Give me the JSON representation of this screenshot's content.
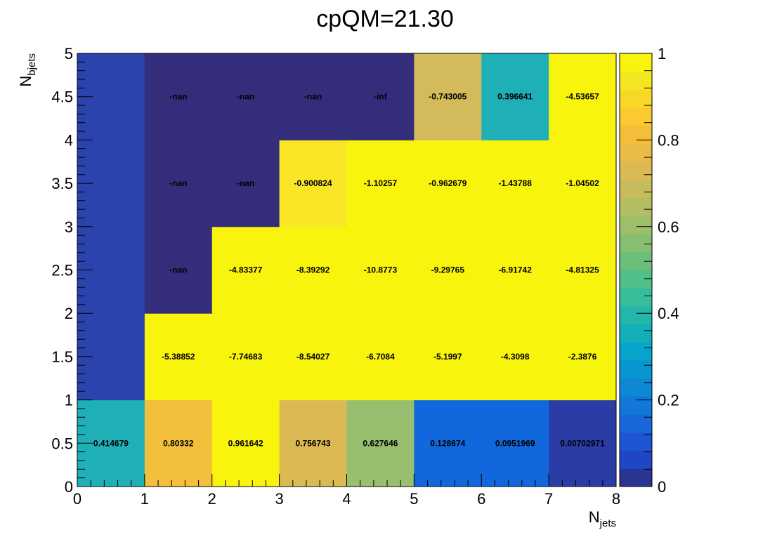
{
  "chart_data": {
    "type": "heatmap",
    "title": "cpQM=21.30",
    "xlabel": {
      "main": "N",
      "sub": "jets"
    },
    "ylabel": {
      "main": "N",
      "sub": "bjets"
    },
    "xlim": [
      0,
      8
    ],
    "ylim": [
      0,
      5
    ],
    "zlim": [
      0,
      1
    ],
    "x_bin_edges": [
      0,
      1,
      2,
      3,
      4,
      5,
      6,
      7,
      8
    ],
    "y_bin_edges": [
      0,
      1,
      2,
      3,
      4,
      5
    ],
    "x_tick_labels": [
      "0",
      "1",
      "2",
      "3",
      "4",
      "5",
      "6",
      "7",
      "8"
    ],
    "y_tick_labels": [
      "0",
      "0.5",
      "1",
      "1.5",
      "2",
      "2.5",
      "3",
      "3.5",
      "4",
      "4.5",
      "5"
    ],
    "colorbar_tick_labels": [
      "0",
      "0.2",
      "0.4",
      "0.6",
      "0.8",
      "1"
    ],
    "palette": [
      "#2a3591",
      "#1f46c4",
      "#1d55d2",
      "#1868dc",
      "#1177d9",
      "#0e87d4",
      "#0796d1",
      "#07a5cb",
      "#12afbb",
      "#24b6ab",
      "#38bc9a",
      "#52bf89",
      "#6bbf7a",
      "#86bf72",
      "#9ebe69",
      "#b3bd62",
      "#c6bc5c",
      "#dbba53",
      "#e9bb47",
      "#f5be39",
      "#fbc930",
      "#f9d728",
      "#f5e622",
      "#f9f40d"
    ],
    "underflow_color": "#332d7c",
    "cells": [
      {
        "x": 0.5,
        "y": 0.5,
        "z": 0.414679,
        "label": "0.414679"
      },
      {
        "x": 1.5,
        "y": 0.5,
        "z": 0.80332,
        "label": "0.80332"
      },
      {
        "x": 2.5,
        "y": 0.5,
        "z": 0.961642,
        "label": "0.961642"
      },
      {
        "x": 3.5,
        "y": 0.5,
        "z": 0.756743,
        "label": "0.756743"
      },
      {
        "x": 4.5,
        "y": 0.5,
        "z": 0.627646,
        "label": "0.627646"
      },
      {
        "x": 5.5,
        "y": 0.5,
        "z": 0.128674,
        "label": "0.128674"
      },
      {
        "x": 6.5,
        "y": 0.5,
        "z": 0.0951969,
        "label": "0.0951969"
      },
      {
        "x": 7.5,
        "y": 0.5,
        "z": 0.00702971,
        "label": "0.00702971"
      },
      {
        "x": 0.5,
        "y": 1.5,
        "z": 0.05,
        "label": ""
      },
      {
        "x": 0.5,
        "y": 2.5,
        "z": 0.05,
        "label": ""
      },
      {
        "x": 0.5,
        "y": 3.5,
        "z": 0.05,
        "label": ""
      },
      {
        "x": 0.5,
        "y": 4.5,
        "z": 0.05,
        "label": ""
      },
      {
        "x": 1.5,
        "y": 1.5,
        "z": -5.38852,
        "label": "-5.38852"
      },
      {
        "x": 2.5,
        "y": 1.5,
        "z": -7.74683,
        "label": "-7.74683"
      },
      {
        "x": 3.5,
        "y": 1.5,
        "z": -8.54027,
        "label": "-8.54027"
      },
      {
        "x": 4.5,
        "y": 1.5,
        "z": -6.7084,
        "label": "-6.7084"
      },
      {
        "x": 5.5,
        "y": 1.5,
        "z": -5.1997,
        "label": "-5.1997"
      },
      {
        "x": 6.5,
        "y": 1.5,
        "z": -4.3098,
        "label": "-4.3098"
      },
      {
        "x": 7.5,
        "y": 1.5,
        "z": -2.3876,
        "label": "-2.3876"
      },
      {
        "x": 1.5,
        "y": 2.5,
        "z": "nan",
        "label": "-nan"
      },
      {
        "x": 2.5,
        "y": 2.5,
        "z": -4.83377,
        "label": "-4.83377"
      },
      {
        "x": 3.5,
        "y": 2.5,
        "z": -8.39292,
        "label": "-8.39292"
      },
      {
        "x": 4.5,
        "y": 2.5,
        "z": -10.8773,
        "label": "-10.8773"
      },
      {
        "x": 5.5,
        "y": 2.5,
        "z": -9.29765,
        "label": "-9.29765"
      },
      {
        "x": 6.5,
        "y": 2.5,
        "z": -6.91742,
        "label": "-6.91742"
      },
      {
        "x": 7.5,
        "y": 2.5,
        "z": -4.81325,
        "label": "-4.81325"
      },
      {
        "x": 1.5,
        "y": 3.5,
        "z": "nan",
        "label": "-nan"
      },
      {
        "x": 2.5,
        "y": 3.5,
        "z": "nan",
        "label": "-nan"
      },
      {
        "x": 3.5,
        "y": 3.5,
        "z": -0.900824,
        "label": "-0.900824"
      },
      {
        "x": 4.5,
        "y": 3.5,
        "z": -1.10257,
        "label": "-1.10257"
      },
      {
        "x": 5.5,
        "y": 3.5,
        "z": -0.962679,
        "label": "-0.962679"
      },
      {
        "x": 6.5,
        "y": 3.5,
        "z": -1.43788,
        "label": "-1.43788"
      },
      {
        "x": 7.5,
        "y": 3.5,
        "z": -1.04502,
        "label": "-1.04502"
      },
      {
        "x": 1.5,
        "y": 4.5,
        "z": "nan",
        "label": "-nan"
      },
      {
        "x": 2.5,
        "y": 4.5,
        "z": "nan",
        "label": "-nan"
      },
      {
        "x": 3.5,
        "y": 4.5,
        "z": "nan",
        "label": "-nan"
      },
      {
        "x": 4.5,
        "y": 4.5,
        "z": "-inf",
        "label": "-inf"
      },
      {
        "x": 5.5,
        "y": 4.5,
        "z": -0.743005,
        "label": "-0.743005"
      },
      {
        "x": 6.5,
        "y": 4.5,
        "z": 0.396641,
        "label": "0.396641"
      },
      {
        "x": 7.5,
        "y": 4.5,
        "z": -4.53657,
        "label": "-4.53657"
      }
    ],
    "cell_colors": {
      "0.5,0.5": "#1fb0b7",
      "1.5,0.5": "#f4bf3a",
      "2.5,0.5": "#f9f40d",
      "3.5,0.5": "#dbba53",
      "4.5,0.5": "#98bf6f",
      "5.5,0.5": "#1167dc",
      "6.5,0.5": "#1167dc",
      "7.5,0.5": "#2a3da6",
      "0.5,1.5": "#2a43ad",
      "0.5,2.5": "#2a43ad",
      "0.5,3.5": "#2a43ad",
      "0.5,4.5": "#2a43ad",
      "1.5,2.5": "#332d7c",
      "1.5,3.5": "#332d7c",
      "2.5,3.5": "#332d7c",
      "1.5,4.5": "#332d7c",
      "2.5,4.5": "#332d7c",
      "3.5,4.5": "#332d7c",
      "4.5,4.5": "#332d7c",
      "3.5,3.5": "#f9e626",
      "5.5,4.5": "#d3ba5a",
      "6.5,4.5": "#1fb0b7"
    },
    "default_cell_color": "#f9f40d",
    "grid": false,
    "legend": "colorbar-right"
  }
}
